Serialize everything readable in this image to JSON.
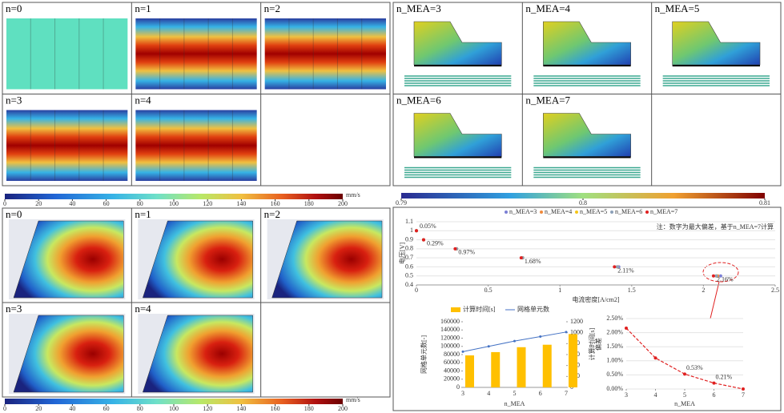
{
  "panels": {
    "velocity": {
      "labels": [
        "n=0",
        "n=1",
        "n=2",
        "n=3",
        "n=4"
      ]
    },
    "velocity_colorbar": {
      "lim": [
        0,
        200
      ],
      "ticks": [
        0,
        20,
        40,
        60,
        80,
        100,
        120,
        140,
        160,
        180,
        200
      ],
      "unit": "mm/s"
    },
    "cross": {
      "labels": [
        "n=0",
        "n=1",
        "n=2",
        "n=3",
        "n=4"
      ]
    },
    "cross_colorbar": {
      "lim": [
        0,
        200
      ],
      "ticks": [
        0,
        20,
        40,
        60,
        80,
        100,
        120,
        140,
        160,
        180,
        200
      ],
      "unit": "mm/s"
    },
    "mesh": {
      "labels": [
        "n_MEA=3",
        "n_MEA=4",
        "n_MEA=5",
        "n_MEA=6",
        "n_MEA=7"
      ]
    },
    "mesh_colorbar": {
      "lim": [
        0.79,
        0.81
      ],
      "ticks": [
        0.79,
        0.8,
        0.81
      ]
    }
  },
  "chart_data": [
    {
      "type": "scatter",
      "xlabel": "电流密度[A/cm2]",
      "ylabel": "电压[V]",
      "note": "注：数字为最大偏差，基于n_MEA=7计算",
      "xlim": [
        0,
        2.5
      ],
      "xticks": [
        0,
        0.5,
        1,
        1.5,
        2,
        2.5
      ],
      "ylim": [
        0.4,
        1.1
      ],
      "yticks": [
        0.4,
        0.5,
        0.6,
        0.7,
        0.8,
        0.9,
        1,
        1.1
      ],
      "series": [
        {
          "name": "n_MEA=3",
          "color": "#7b7fd4",
          "x": [
            0,
            0.05,
            0.28,
            0.74,
            1.41,
            2.12
          ],
          "values": [
            1.0,
            0.9,
            0.8,
            0.7,
            0.6,
            0.5
          ]
        },
        {
          "name": "n_MEA=4",
          "color": "#f08a3c",
          "x": [
            0,
            0.05,
            0.28,
            0.74,
            1.4,
            2.1
          ],
          "values": [
            1.0,
            0.9,
            0.8,
            0.7,
            0.6,
            0.5
          ]
        },
        {
          "name": "n_MEA=5",
          "color": "#f5c518",
          "x": [
            0,
            0.05,
            0.28,
            0.74,
            1.4,
            2.09
          ],
          "values": [
            1.0,
            0.9,
            0.8,
            0.7,
            0.6,
            0.5
          ]
        },
        {
          "name": "n_MEA=6",
          "color": "#8ca0b8",
          "x": [
            0,
            0.05,
            0.28,
            0.74,
            1.4,
            2.09
          ],
          "values": [
            1.0,
            0.9,
            0.8,
            0.7,
            0.6,
            0.5
          ]
        },
        {
          "name": "n_MEA=7",
          "color": "#e02020",
          "x": [
            0,
            0.05,
            0.27,
            0.73,
            1.38,
            2.07
          ],
          "values": [
            1.0,
            0.9,
            0.8,
            0.7,
            0.6,
            0.5
          ],
          "annotations": [
            "0.05%",
            "0.29%",
            "0.97%",
            "1.68%",
            "2.11%",
            "2.16%"
          ]
        }
      ]
    },
    {
      "type": "combo",
      "xlabel": "n_MEA",
      "ylabel": "网格单元数[-]",
      "categories": [
        "3",
        "4",
        "5",
        "6",
        "7"
      ],
      "ylim": [
        0,
        160000
      ],
      "yticks": [
        0,
        20000,
        40000,
        60000,
        80000,
        100000,
        120000,
        140000,
        160000
      ],
      "y2lim": [
        0,
        1200
      ],
      "y2ticks": [
        0,
        200,
        400,
        600,
        800,
        1000,
        1200
      ],
      "series": [
        {
          "name": "计算时间[s]",
          "type": "bar",
          "axis": "y2",
          "color": "#ffc000",
          "values": [
            585,
            645,
            735,
            780,
            975
          ]
        },
        {
          "name": "网格单元数",
          "type": "line",
          "color": "#4472c4",
          "values": [
            87000,
            100000,
            113000,
            124000,
            135000
          ]
        }
      ]
    },
    {
      "type": "line",
      "xlabel": "n_MEA",
      "ylabels": [
        "计算时间[s]",
        "偏差"
      ],
      "xlim": [
        3,
        7
      ],
      "xticks": [
        3,
        4,
        5,
        6,
        7
      ],
      "ylim": [
        0,
        2.5
      ],
      "yticks": [
        {
          "value": 0,
          "label": "0.00%"
        },
        {
          "value": 0.5,
          "label": "0.50%"
        },
        {
          "value": 1,
          "label": "1.00%"
        },
        {
          "value": 1.5,
          "label": "1.50%"
        },
        {
          "value": 2,
          "label": "2.00%"
        },
        {
          "value": 2.5,
          "label": "2.50%"
        }
      ],
      "x": [
        3,
        4,
        5,
        6,
        7
      ],
      "values": [
        2.16,
        1.1,
        0.53,
        0.21,
        0.0
      ],
      "value_labels": [
        null,
        null,
        "0.53%",
        "0.21%",
        null
      ],
      "color": "#e02020"
    }
  ]
}
